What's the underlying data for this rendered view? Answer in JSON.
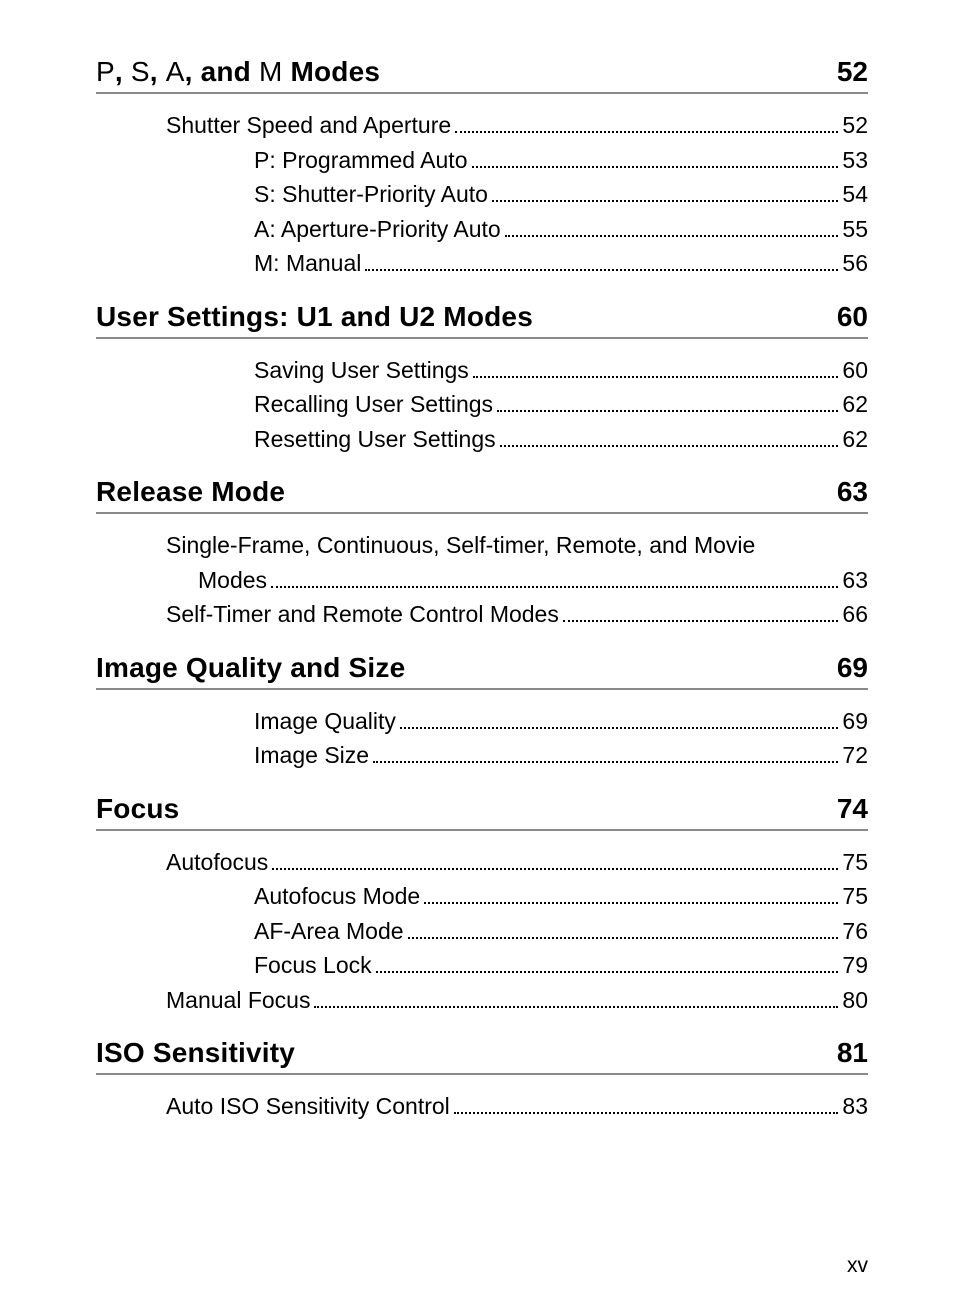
{
  "folio": "xv",
  "sections": [
    {
      "title_parts": [
        {
          "text": "P",
          "thin": true
        },
        {
          "text": ", ",
          "thin": false
        },
        {
          "text": "S",
          "thin": true
        },
        {
          "text": ", ",
          "thin": false
        },
        {
          "text": "A",
          "thin": true
        },
        {
          "text": ", and ",
          "thin": false
        },
        {
          "text": "M",
          "thin": true
        },
        {
          "text": " Modes",
          "thin": false
        }
      ],
      "page": "52",
      "entries": [
        {
          "indent": 1,
          "text": "Shutter Speed and Aperture",
          "page": "52"
        },
        {
          "indent": 2,
          "text": "P: Programmed Auto",
          "page": "53"
        },
        {
          "indent": 2,
          "text": "S: Shutter-Priority Auto",
          "page": "54"
        },
        {
          "indent": 2,
          "text": "A: Aperture-Priority Auto",
          "page": "55"
        },
        {
          "indent": 2,
          "text": "M: Manual",
          "page": "56"
        }
      ]
    },
    {
      "title_parts": [
        {
          "text": "User Settings: U1 and U2 Modes",
          "thin": false
        }
      ],
      "page": "60",
      "entries": [
        {
          "indent": 2,
          "text": "Saving User Settings",
          "page": "60"
        },
        {
          "indent": 2,
          "text": "Recalling User Settings",
          "page": "62"
        },
        {
          "indent": 2,
          "text": "Resetting User Settings",
          "page": "62"
        }
      ]
    },
    {
      "title_parts": [
        {
          "text": "Release Mode",
          "thin": false
        }
      ],
      "page": "63",
      "entries": [
        {
          "indent": 1,
          "multiline": true,
          "first": "Single-Frame, Continuous, Self-timer, Remote, and Movie",
          "rest": "Modes",
          "page": "63"
        },
        {
          "indent": 1,
          "text": "Self-Timer and Remote Control Modes",
          "page": "66"
        }
      ]
    },
    {
      "title_parts": [
        {
          "text": "Image Quality and Size",
          "thin": false
        }
      ],
      "page": "69",
      "entries": [
        {
          "indent": 2,
          "text": "Image Quality",
          "page": "69"
        },
        {
          "indent": 2,
          "text": "Image Size",
          "page": "72"
        }
      ]
    },
    {
      "title_parts": [
        {
          "text": "Focus",
          "thin": false
        }
      ],
      "page": "74",
      "entries": [
        {
          "indent": 1,
          "text": "Autofocus",
          "page": "75"
        },
        {
          "indent": 2,
          "text": "Autofocus Mode",
          "page": "75"
        },
        {
          "indent": 2,
          "text": "AF-Area Mode",
          "page": "76"
        },
        {
          "indent": 2,
          "text": "Focus Lock",
          "page": "79"
        },
        {
          "indent": 1,
          "text": "Manual Focus",
          "page": "80"
        }
      ]
    },
    {
      "title_parts": [
        {
          "text": "ISO Sensitivity",
          "thin": false
        }
      ],
      "page": "81",
      "entries": [
        {
          "indent": 1,
          "text": "Auto ISO Sensitivity Control",
          "page": "83"
        }
      ]
    }
  ]
}
